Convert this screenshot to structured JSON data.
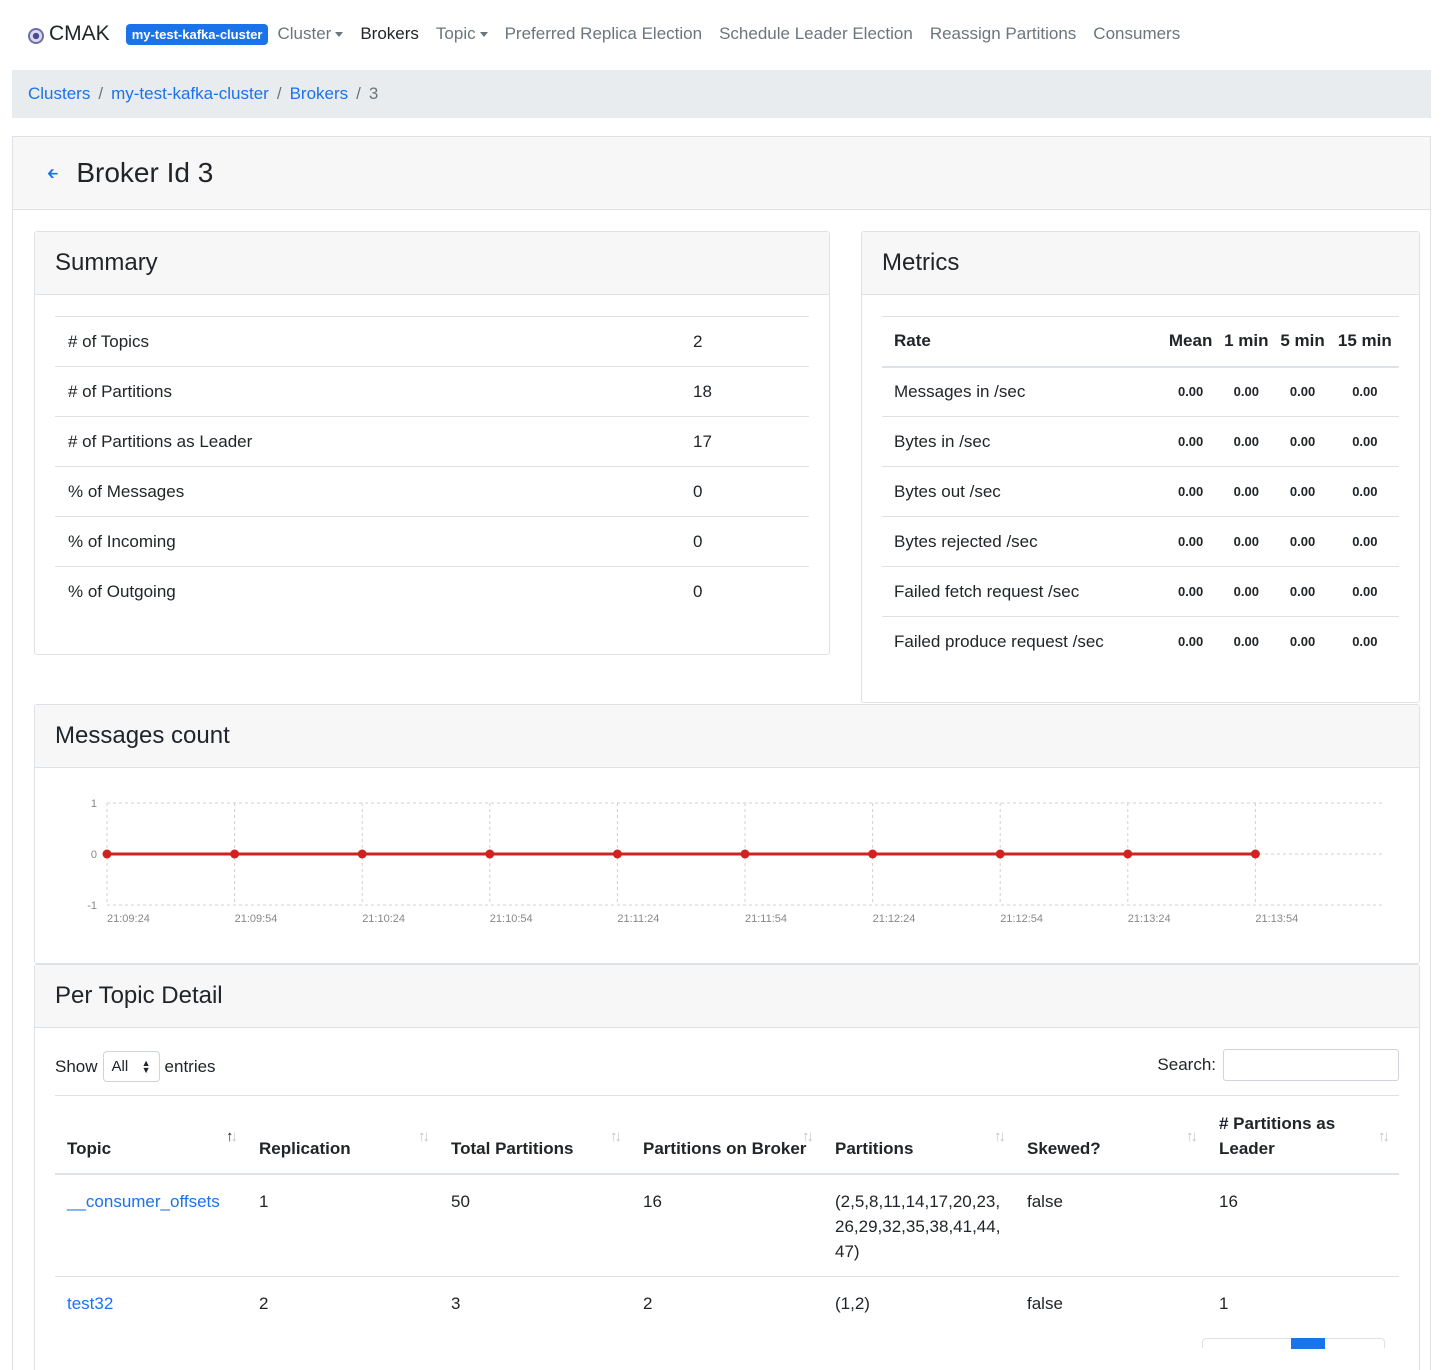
{
  "nav": {
    "brand": "CMAK",
    "cluster_badge": "my-test-kafka-cluster",
    "items": [
      {
        "label": "Cluster",
        "dropdown": true,
        "active": false
      },
      {
        "label": "Brokers",
        "dropdown": false,
        "active": true
      },
      {
        "label": "Topic",
        "dropdown": true,
        "active": false
      },
      {
        "label": "Preferred Replica Election",
        "dropdown": false,
        "active": false
      },
      {
        "label": "Schedule Leader Election",
        "dropdown": false,
        "active": false
      },
      {
        "label": "Reassign Partitions",
        "dropdown": false,
        "active": false
      },
      {
        "label": "Consumers",
        "dropdown": false,
        "active": false
      }
    ]
  },
  "breadcrumb": {
    "items": [
      "Clusters",
      "my-test-kafka-cluster",
      "Brokers"
    ],
    "current": "3"
  },
  "page": {
    "title": "Broker Id 3"
  },
  "summary": {
    "title": "Summary",
    "rows": [
      {
        "label": "# of Topics",
        "value": "2"
      },
      {
        "label": "# of Partitions",
        "value": "18"
      },
      {
        "label": "# of Partitions as Leader",
        "value": "17"
      },
      {
        "label": "% of Messages",
        "value": "0"
      },
      {
        "label": "% of Incoming",
        "value": "0"
      },
      {
        "label": "% of Outgoing",
        "value": "0"
      }
    ]
  },
  "metrics": {
    "title": "Metrics",
    "headers": [
      "Rate",
      "Mean",
      "1 min",
      "5 min",
      "15 min"
    ],
    "rows": [
      {
        "label": "Messages in /sec",
        "values": [
          "0.00",
          "0.00",
          "0.00",
          "0.00"
        ]
      },
      {
        "label": "Bytes in /sec",
        "values": [
          "0.00",
          "0.00",
          "0.00",
          "0.00"
        ]
      },
      {
        "label": "Bytes out /sec",
        "values": [
          "0.00",
          "0.00",
          "0.00",
          "0.00"
        ]
      },
      {
        "label": "Bytes rejected /sec",
        "values": [
          "0.00",
          "0.00",
          "0.00",
          "0.00"
        ]
      },
      {
        "label": "Failed fetch request /sec",
        "values": [
          "0.00",
          "0.00",
          "0.00",
          "0.00"
        ]
      },
      {
        "label": "Failed produce request /sec",
        "values": [
          "0.00",
          "0.00",
          "0.00",
          "0.00"
        ]
      }
    ]
  },
  "messages_count": {
    "title": "Messages count"
  },
  "chart_data": {
    "type": "line",
    "x": [
      "21:09:24",
      "21:09:54",
      "21:10:24",
      "21:10:54",
      "21:11:24",
      "21:11:54",
      "21:12:24",
      "21:12:54",
      "21:13:24",
      "21:13:54"
    ],
    "series": [
      {
        "values": [
          0,
          0,
          0,
          0,
          0,
          0,
          0,
          0,
          0,
          0
        ],
        "color": "#d0221f"
      }
    ],
    "yticks": [
      "1",
      "0",
      "-1"
    ],
    "ylim": [
      -1,
      1
    ],
    "grid": true
  },
  "per_topic": {
    "title": "Per Topic Detail",
    "show_label": "Show",
    "entries_label": "entries",
    "page_size": "All",
    "search_label": "Search:",
    "search_value": "",
    "headers": [
      {
        "label": "Topic",
        "sorted": "asc"
      },
      {
        "label": "Replication",
        "sorted": ""
      },
      {
        "label": "Total Partitions",
        "sorted": ""
      },
      {
        "label": "Partitions on Broker",
        "sorted": ""
      },
      {
        "label": "Partitions",
        "sorted": ""
      },
      {
        "label": "Skewed?",
        "sorted": ""
      },
      {
        "label": "# Partitions as Leader",
        "sorted": ""
      }
    ],
    "rows": [
      {
        "topic": "__consumer_offsets",
        "replication": "1",
        "total_partitions": "50",
        "partitions_on_broker": "16",
        "partitions": "(2,5,8,11,14,17,20,23,26,29,32,35,38,41,44,47)",
        "skewed": "false",
        "leader": "16"
      },
      {
        "topic": "test32",
        "replication": "2",
        "total_partitions": "3",
        "partitions_on_broker": "2",
        "partitions": "(1,2)",
        "skewed": "false",
        "leader": "1"
      }
    ]
  },
  "colors": {
    "accent": "#1a73e8",
    "line": "#d0221f"
  }
}
